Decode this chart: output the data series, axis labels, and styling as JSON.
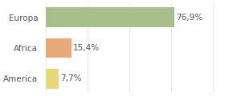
{
  "categories": [
    "Europa",
    "Africa",
    "America"
  ],
  "values": [
    76.9,
    15.4,
    7.7
  ],
  "labels": [
    "76,9%",
    "15,4%",
    "7,7%"
  ],
  "bar_colors": [
    "#a8bf8a",
    "#e8a878",
    "#e8d878"
  ],
  "background_color": "#ffffff",
  "xlim": [
    0,
    105
  ],
  "label_fontsize": 7.5,
  "tick_fontsize": 7.5,
  "grid_lines": [
    0,
    25,
    50,
    75,
    100
  ]
}
